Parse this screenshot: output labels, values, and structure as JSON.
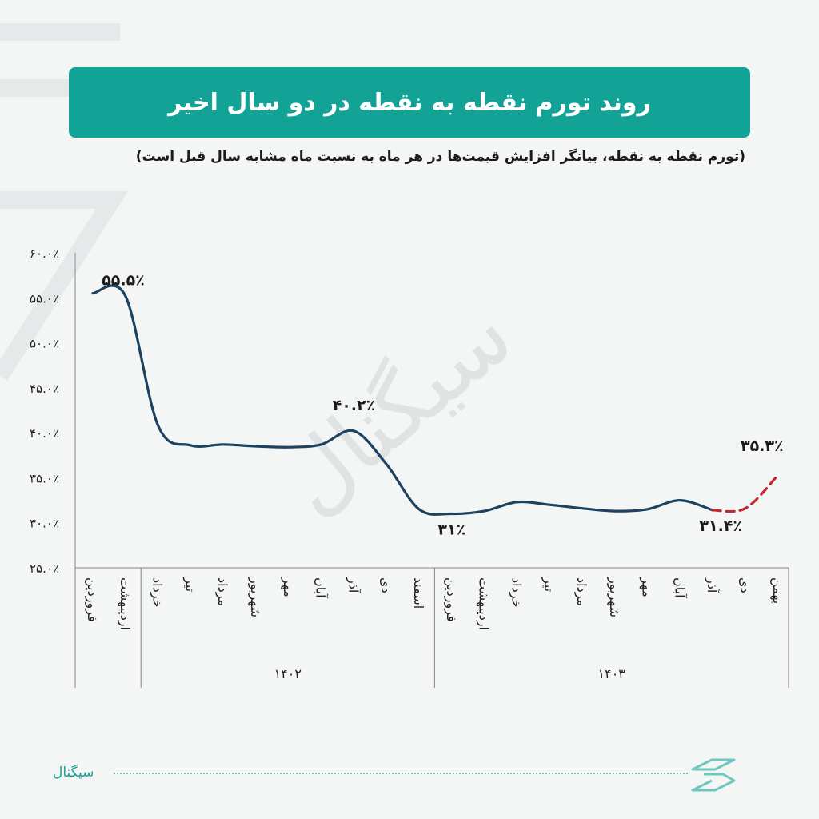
{
  "header": {
    "title": "روند تورم نقطه به نقطه در دو سال اخیر",
    "subtitle": "(تورم نقطه به نقطه، بیانگر افزایش قیمت‌ها در هر ماه به نسبت ماه مشابه سال قبل است)"
  },
  "chart_data": {
    "type": "line",
    "title": "روند تورم نقطه به نقطه در دو سال اخیر",
    "ylim": [
      25,
      60
    ],
    "y_ticks": [
      60,
      55,
      50,
      45,
      40,
      35,
      30,
      25
    ],
    "y_tick_labels": [
      "۶۰.۰٪",
      "۵۵.۰٪",
      "۵۰.۰٪",
      "۴۵.۰٪",
      "۴۰.۰٪",
      "۳۵.۰٪",
      "۳۰.۰٪",
      "۲۵.۰٪"
    ],
    "categories": [
      "فروردین",
      "اردیبهشت",
      "خرداد",
      "تیر",
      "مرداد",
      "شهریور",
      "مهر",
      "آبان",
      "آذر",
      "دی",
      "اسفند",
      "فروردین",
      "اردیبهشت",
      "خرداد",
      "تیر",
      "مرداد",
      "شهریور",
      "مهر",
      "آبان",
      "آذر",
      "دی",
      "بهمن"
    ],
    "year_groups": [
      {
        "label": "۱۴۰۲",
        "start": 2,
        "end": 10
      },
      {
        "label": "۱۴۰۳",
        "start": 11,
        "end": 21
      }
    ],
    "series": [
      {
        "style": "solid",
        "color": "#1d4260",
        "values": [
          55.5,
          55.2,
          40.8,
          38.6,
          38.7,
          38.5,
          38.4,
          38.7,
          40.2,
          36.5,
          31.5,
          31.0,
          31.3,
          32.3,
          32.0,
          31.6,
          31.3,
          31.5,
          32.5,
          31.4,
          null,
          null
        ]
      },
      {
        "style": "dashed",
        "color": "#c0282d",
        "values": [
          null,
          null,
          null,
          null,
          null,
          null,
          null,
          null,
          null,
          null,
          null,
          null,
          null,
          null,
          null,
          null,
          null,
          null,
          null,
          31.4,
          31.6,
          35.3
        ]
      }
    ],
    "annotations": [
      {
        "text": "۵۵.۵٪",
        "index": 0,
        "value": 55.5
      },
      {
        "text": "۴۰.۲٪",
        "index": 8,
        "value": 40.2
      },
      {
        "text": "۳۱٪",
        "index": 11,
        "value": 31.0
      },
      {
        "text": "۳۱.۴٪",
        "index": 19,
        "value": 31.4
      },
      {
        "text": "۳۵.۳٪",
        "index": 21,
        "value": 35.3
      }
    ],
    "watermark": "سیگنال",
    "grid": false
  },
  "footer": {
    "brand": "سیگنال"
  },
  "colors": {
    "accent": "#13a396",
    "line": "#1d4260",
    "forecast": "#c0282d"
  }
}
